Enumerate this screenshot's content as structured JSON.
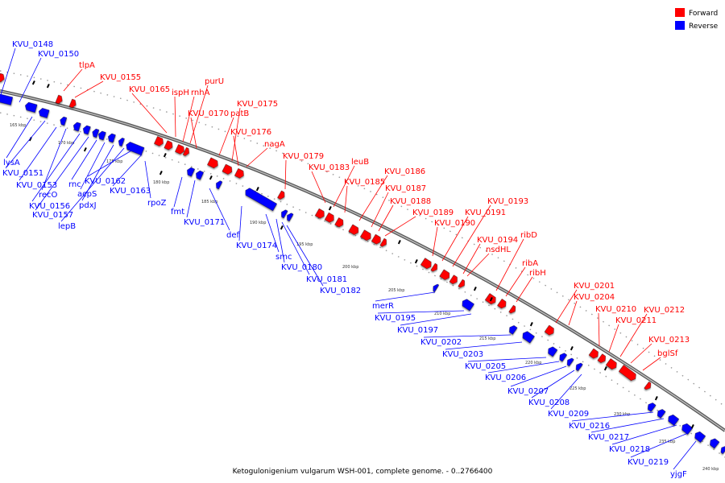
{
  "caption": "Ketogulonigenium vulgarum WSH-001, complete genome. - 0..2766400",
  "legend": [
    {
      "label": "Forward",
      "color": "#ff0000"
    },
    {
      "label": "Reverse",
      "color": "#0000ff"
    }
  ],
  "colors": {
    "forward": "#ff0000",
    "reverse": "#0000ff",
    "backbone": "#808080"
  },
  "ticks": [
    "165 kbp",
    "170 kbp",
    "175 kbp",
    "180 kbp",
    "185 kbp",
    "190 kbp",
    "195 kbp",
    "200 kbp",
    "205 kbp",
    "210 kbp",
    "215 kbp",
    "220 kbp",
    "225 kbp",
    "230 kbp",
    "235 kbp",
    "240 kbp"
  ],
  "forward_labels": [
    "tlpA",
    "KVU_0155",
    "KVU_0165",
    "ispH",
    "rnhA",
    "purU",
    "KVU_0170",
    "patB",
    "KVU_0175",
    "KVU_0176",
    "nagA",
    "KVU_0179",
    "KVU_0183",
    "leuB",
    "KVU_0185",
    "KVU_0186",
    "KVU_0187",
    "KVU_0188",
    "KVU_0189",
    "KVU_0190",
    "KVU_0191",
    "KVU_0193",
    "KVU_0194",
    "nsdHL",
    "ribD",
    "ribA",
    "ribH",
    "KVU_0201",
    "KVU_0204",
    "KVU_0210",
    "KVU_0211",
    "KVU_0212",
    "KVU_0213",
    "bglSf"
  ],
  "reverse_labels": [
    "KVU_0148",
    "KVU_0150",
    "lysA",
    "KVU_0151",
    "KVU_0153",
    "recO",
    "KVU_0156",
    "KVU_0157",
    "rnc",
    "acpS",
    "pdxJ",
    "lepB",
    "KVU_0162",
    "KVU_0163",
    "rpoZ",
    "fmt",
    "KVU_0171",
    "def",
    "KVU_0174",
    "smc",
    "KVU_0180",
    "KVU_0181",
    "KVU_0182",
    "merR",
    "KVU_0195",
    "KVU_0197",
    "KVU_0202",
    "KVU_0203",
    "KVU_0205",
    "KVU_0206",
    "KVU_0207",
    "KVU_0208",
    "KVU_0209",
    "KVU_0216",
    "KVU_0217",
    "KVU_0218",
    "KVU_0219",
    "yjgF"
  ]
}
